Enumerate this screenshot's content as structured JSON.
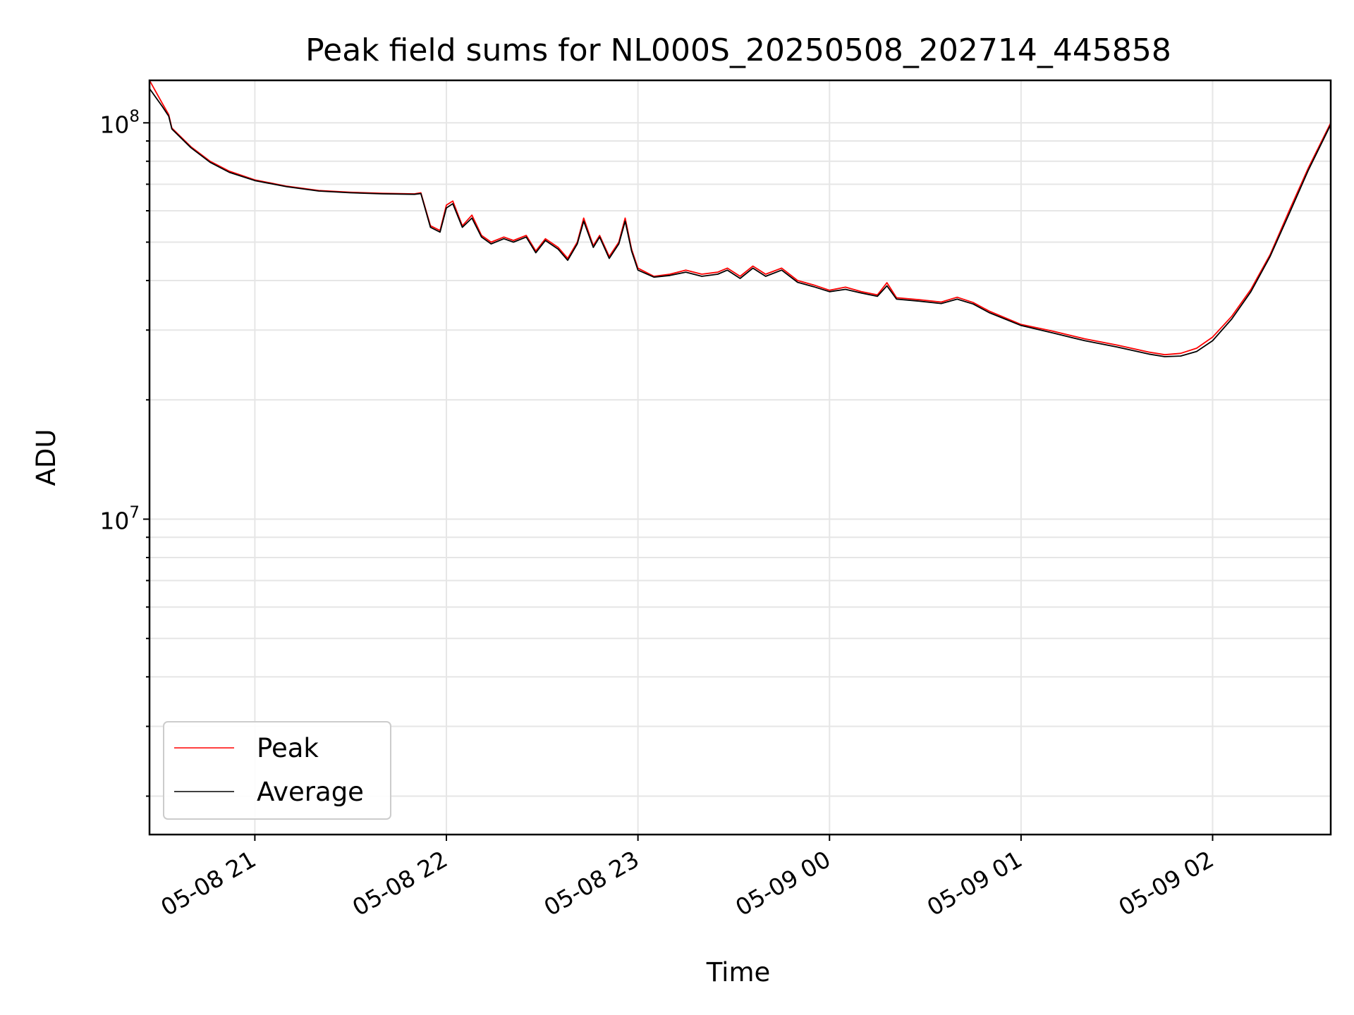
{
  "chart_data": {
    "type": "line",
    "title": "Peak field sums for NL000S_20250508_202714_445858",
    "xlabel": "Time",
    "ylabel": "ADU",
    "yscale": "log",
    "xlim": [
      "2025-05-08 20:27",
      "2025-05-09 02:37"
    ],
    "ylim": [
      1600000,
      128000000
    ],
    "x_ticks": [
      {
        "time": "2025-05-08 21:00",
        "label": "05-08 21"
      },
      {
        "time": "2025-05-08 22:00",
        "label": "05-08 22"
      },
      {
        "time": "2025-05-08 23:00",
        "label": "05-08 23"
      },
      {
        "time": "2025-05-09 00:00",
        "label": "05-09 00"
      },
      {
        "time": "2025-05-09 01:00",
        "label": "05-09 01"
      },
      {
        "time": "2025-05-09 02:00",
        "label": "05-09 02"
      }
    ],
    "y_ticks": [
      {
        "value": 10000000,
        "base": "10",
        "exponent": "7"
      },
      {
        "value": 100000000,
        "base": "10",
        "exponent": "8"
      }
    ],
    "grid": true,
    "legend": "lower-left",
    "series": [
      {
        "name": "Peak",
        "color": "#ff0000",
        "points": [
          [
            "2025-05-08 20:27",
            128000000
          ],
          [
            "2025-05-08 20:31",
            112000000
          ],
          [
            "2025-05-08 20:33",
            105000000
          ],
          [
            "2025-05-08 20:34",
            97000000
          ],
          [
            "2025-05-08 20:40",
            87000000
          ],
          [
            "2025-05-08 20:46",
            80000000
          ],
          [
            "2025-05-08 20:52",
            75500000
          ],
          [
            "2025-05-08 21:00",
            71800000
          ],
          [
            "2025-05-08 21:10",
            69200000
          ],
          [
            "2025-05-08 21:20",
            67500000
          ],
          [
            "2025-05-08 21:30",
            66800000
          ],
          [
            "2025-05-08 21:40",
            66400000
          ],
          [
            "2025-05-08 21:50",
            66200000
          ],
          [
            "2025-05-08 21:52",
            66600000
          ],
          [
            "2025-05-08 21:55",
            55000000
          ],
          [
            "2025-05-08 21:58",
            53500000
          ],
          [
            "2025-05-08 22:00",
            62000000
          ],
          [
            "2025-05-08 22:02",
            63500000
          ],
          [
            "2025-05-08 22:05",
            55000000
          ],
          [
            "2025-05-08 22:08",
            58500000
          ],
          [
            "2025-05-08 22:11",
            52000000
          ],
          [
            "2025-05-08 22:14",
            50000000
          ],
          [
            "2025-05-08 22:18",
            51500000
          ],
          [
            "2025-05-08 22:21",
            50500000
          ],
          [
            "2025-05-08 22:25",
            52000000
          ],
          [
            "2025-05-08 22:28",
            47500000
          ],
          [
            "2025-05-08 22:31",
            51000000
          ],
          [
            "2025-05-08 22:35",
            48500000
          ],
          [
            "2025-05-08 22:38",
            45500000
          ],
          [
            "2025-05-08 22:41",
            50000000
          ],
          [
            "2025-05-08 22:43",
            57500000
          ],
          [
            "2025-05-08 22:46",
            49000000
          ],
          [
            "2025-05-08 22:48",
            52000000
          ],
          [
            "2025-05-08 22:51",
            46000000
          ],
          [
            "2025-05-08 22:54",
            50000000
          ],
          [
            "2025-05-08 22:56",
            57500000
          ],
          [
            "2025-05-08 22:58",
            48000000
          ],
          [
            "2025-05-08 23:00",
            43000000
          ],
          [
            "2025-05-08 23:05",
            41000000
          ],
          [
            "2025-05-08 23:10",
            41500000
          ],
          [
            "2025-05-08 23:15",
            42500000
          ],
          [
            "2025-05-08 23:20",
            41500000
          ],
          [
            "2025-05-08 23:25",
            42000000
          ],
          [
            "2025-05-08 23:28",
            43000000
          ],
          [
            "2025-05-08 23:32",
            41000000
          ],
          [
            "2025-05-08 23:36",
            43500000
          ],
          [
            "2025-05-08 23:40",
            41500000
          ],
          [
            "2025-05-08 23:45",
            43000000
          ],
          [
            "2025-05-08 23:50",
            40000000
          ],
          [
            "2025-05-08 23:55",
            39000000
          ],
          [
            "2025-05-09 00:00",
            37800000
          ],
          [
            "2025-05-09 00:05",
            38500000
          ],
          [
            "2025-05-09 00:10",
            37500000
          ],
          [
            "2025-05-09 00:15",
            36800000
          ],
          [
            "2025-05-09 00:18",
            39500000
          ],
          [
            "2025-05-09 00:21",
            36200000
          ],
          [
            "2025-05-09 00:28",
            35800000
          ],
          [
            "2025-05-09 00:35",
            35300000
          ],
          [
            "2025-05-09 00:40",
            36300000
          ],
          [
            "2025-05-09 00:45",
            35200000
          ],
          [
            "2025-05-09 00:50",
            33500000
          ],
          [
            "2025-05-09 01:00",
            31000000
          ],
          [
            "2025-05-09 01:10",
            29800000
          ],
          [
            "2025-05-09 01:20",
            28500000
          ],
          [
            "2025-05-09 01:30",
            27500000
          ],
          [
            "2025-05-09 01:40",
            26400000
          ],
          [
            "2025-05-09 01:45",
            26000000
          ],
          [
            "2025-05-09 01:50",
            26200000
          ],
          [
            "2025-05-09 01:55",
            27000000
          ],
          [
            "2025-05-09 02:00",
            28800000
          ],
          [
            "2025-05-09 02:06",
            32500000
          ],
          [
            "2025-05-09 02:12",
            38000000
          ],
          [
            "2025-05-09 02:18",
            46500000
          ],
          [
            "2025-05-09 02:24",
            60000000
          ],
          [
            "2025-05-09 02:30",
            77000000
          ],
          [
            "2025-05-09 02:37",
            100000000
          ]
        ]
      },
      {
        "name": "Average",
        "color": "#000000",
        "points": [
          [
            "2025-05-08 20:27",
            122000000
          ],
          [
            "2025-05-08 20:31",
            110000000
          ],
          [
            "2025-05-08 20:33",
            104000000
          ],
          [
            "2025-05-08 20:34",
            96500000
          ],
          [
            "2025-05-08 20:40",
            86500000
          ],
          [
            "2025-05-08 20:46",
            79500000
          ],
          [
            "2025-05-08 20:52",
            75000000
          ],
          [
            "2025-05-08 21:00",
            71500000
          ],
          [
            "2025-05-08 21:10",
            69000000
          ],
          [
            "2025-05-08 21:20",
            67300000
          ],
          [
            "2025-05-08 21:30",
            66600000
          ],
          [
            "2025-05-08 21:40",
            66200000
          ],
          [
            "2025-05-08 21:50",
            66000000
          ],
          [
            "2025-05-08 21:52",
            66300000
          ],
          [
            "2025-05-08 21:55",
            54500000
          ],
          [
            "2025-05-08 21:58",
            53000000
          ],
          [
            "2025-05-08 22:00",
            61000000
          ],
          [
            "2025-05-08 22:02",
            62500000
          ],
          [
            "2025-05-08 22:05",
            54500000
          ],
          [
            "2025-05-08 22:08",
            57500000
          ],
          [
            "2025-05-08 22:11",
            51500000
          ],
          [
            "2025-05-08 22:14",
            49500000
          ],
          [
            "2025-05-08 22:18",
            51000000
          ],
          [
            "2025-05-08 22:21",
            50000000
          ],
          [
            "2025-05-08 22:25",
            51500000
          ],
          [
            "2025-05-08 22:28",
            47000000
          ],
          [
            "2025-05-08 22:31",
            50500000
          ],
          [
            "2025-05-08 22:35",
            48000000
          ],
          [
            "2025-05-08 22:38",
            45000000
          ],
          [
            "2025-05-08 22:41",
            49500000
          ],
          [
            "2025-05-08 22:43",
            56500000
          ],
          [
            "2025-05-08 22:46",
            48500000
          ],
          [
            "2025-05-08 22:48",
            51500000
          ],
          [
            "2025-05-08 22:51",
            45500000
          ],
          [
            "2025-05-08 22:54",
            49500000
          ],
          [
            "2025-05-08 22:56",
            56500000
          ],
          [
            "2025-05-08 22:58",
            47500000
          ],
          [
            "2025-05-08 23:00",
            42500000
          ],
          [
            "2025-05-08 23:05",
            40800000
          ],
          [
            "2025-05-08 23:10",
            41200000
          ],
          [
            "2025-05-08 23:15",
            42000000
          ],
          [
            "2025-05-08 23:20",
            41000000
          ],
          [
            "2025-05-08 23:25",
            41500000
          ],
          [
            "2025-05-08 23:28",
            42500000
          ],
          [
            "2025-05-08 23:32",
            40500000
          ],
          [
            "2025-05-08 23:36",
            43000000
          ],
          [
            "2025-05-08 23:40",
            41000000
          ],
          [
            "2025-05-08 23:45",
            42500000
          ],
          [
            "2025-05-08 23:50",
            39600000
          ],
          [
            "2025-05-08 23:55",
            38600000
          ],
          [
            "2025-05-09 00:00",
            37500000
          ],
          [
            "2025-05-09 00:05",
            38000000
          ],
          [
            "2025-05-09 00:10",
            37200000
          ],
          [
            "2025-05-09 00:15",
            36500000
          ],
          [
            "2025-05-09 00:18",
            38800000
          ],
          [
            "2025-05-09 00:21",
            35900000
          ],
          [
            "2025-05-09 00:28",
            35500000
          ],
          [
            "2025-05-09 00:35",
            35000000
          ],
          [
            "2025-05-09 00:40",
            35900000
          ],
          [
            "2025-05-09 00:45",
            34900000
          ],
          [
            "2025-05-09 00:50",
            33200000
          ],
          [
            "2025-05-09 01:00",
            30800000
          ],
          [
            "2025-05-09 01:10",
            29500000
          ],
          [
            "2025-05-09 01:20",
            28200000
          ],
          [
            "2025-05-09 01:30",
            27200000
          ],
          [
            "2025-05-09 01:40",
            26100000
          ],
          [
            "2025-05-09 01:45",
            25700000
          ],
          [
            "2025-05-09 01:50",
            25800000
          ],
          [
            "2025-05-09 01:55",
            26500000
          ],
          [
            "2025-05-09 02:00",
            28200000
          ],
          [
            "2025-05-09 02:06",
            32000000
          ],
          [
            "2025-05-09 02:12",
            37500000
          ],
          [
            "2025-05-09 02:18",
            46000000
          ],
          [
            "2025-05-09 02:24",
            59000000
          ],
          [
            "2025-05-09 02:30",
            76000000
          ],
          [
            "2025-05-09 02:37",
            99000000
          ]
        ]
      }
    ]
  }
}
